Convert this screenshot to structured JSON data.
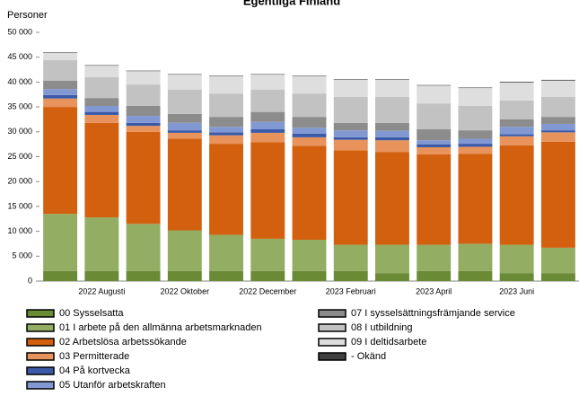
{
  "chart_data": {
    "type": "stacked-bar",
    "title": "Egentliga Finland",
    "y_label": "Personer",
    "categories": [
      null,
      "2022 Augusti",
      null,
      "2022 Oktober",
      null,
      "2022 December",
      null,
      "2023 Februari",
      null,
      "2023 April",
      null,
      "2023 Juni",
      null
    ],
    "ylim": [
      0,
      50000
    ],
    "yticks": [
      0,
      {
        "value": 5000,
        "label": "5 000"
      },
      {
        "value": 10000,
        "label": "10 000"
      },
      {
        "value": 15000,
        "label": "15 000"
      },
      {
        "value": 20000,
        "label": "20 000"
      },
      {
        "value": 25000,
        "label": "25 000"
      },
      {
        "value": 30000,
        "label": "30 000"
      },
      {
        "value": 35000,
        "label": "35 000"
      },
      {
        "value": 40000,
        "label": "40 000"
      },
      {
        "value": 45000,
        "label": "45 000"
      },
      {
        "value": 50000,
        "label": "50 000"
      }
    ],
    "series": [
      {
        "name": "00 Sysselsatta",
        "color": "#6a8a35",
        "values": [
          2000,
          2000,
          2000,
          2000,
          2000,
          2000,
          2000,
          2000,
          1600,
          2000,
          2000,
          1600,
          1600
        ]
      },
      {
        "name": "01 I arbete på den allmänna arbetsmarknaden",
        "color": "#93ad62",
        "values": [
          11500,
          10800,
          9500,
          8200,
          7300,
          6500,
          6300,
          5300,
          5700,
          5300,
          5500,
          5700,
          5100
        ]
      },
      {
        "name": "02 Arbetslösa arbetssökande",
        "color": "#d2600e",
        "values": [
          21500,
          19000,
          18500,
          18400,
          18300,
          19400,
          18900,
          19000,
          18600,
          18200,
          18100,
          20000,
          21300
        ]
      },
      {
        "name": "03 Permitterade",
        "color": "#e8925c",
        "values": [
          1700,
          1600,
          1200,
          1200,
          1700,
          1900,
          1700,
          2100,
          2400,
          1400,
          1400,
          1800,
          1900
        ]
      },
      {
        "name": "04 På kortvecka",
        "color": "#3a5aa8",
        "values": [
          700,
          600,
          600,
          500,
          600,
          700,
          700,
          500,
          600,
          600,
          600,
          400,
          400
        ]
      },
      {
        "name": "05 Utanför arbetskraften",
        "color": "#8298d2",
        "values": [
          1200,
          1200,
          1400,
          1500,
          1100,
          1500,
          1200,
          1400,
          1300,
          800,
          1000,
          1500,
          1300
        ]
      },
      {
        "name": "07 I sysselsättningsfrämjande service",
        "color": "#8c8c8c",
        "values": [
          1700,
          1600,
          2000,
          1800,
          2000,
          2000,
          2200,
          1500,
          1600,
          2200,
          1700,
          1500,
          1400
        ]
      },
      {
        "name": "08 I utbildning",
        "color": "#c2c2c2",
        "values": [
          4100,
          4200,
          4300,
          4900,
          4700,
          4500,
          4700,
          5200,
          5200,
          5200,
          4900,
          3800,
          4000
        ]
      },
      {
        "name": "09 I deltidsarbete",
        "color": "#dedede",
        "values": [
          1500,
          2300,
          2700,
          3000,
          3500,
          3000,
          3500,
          3500,
          3500,
          3600,
          3600,
          3600,
          3300
        ]
      },
      {
        "name": "- Okänd",
        "color": "#404040",
        "values": [
          100,
          100,
          100,
          100,
          100,
          100,
          100,
          100,
          100,
          100,
          100,
          150,
          150
        ]
      }
    ]
  }
}
